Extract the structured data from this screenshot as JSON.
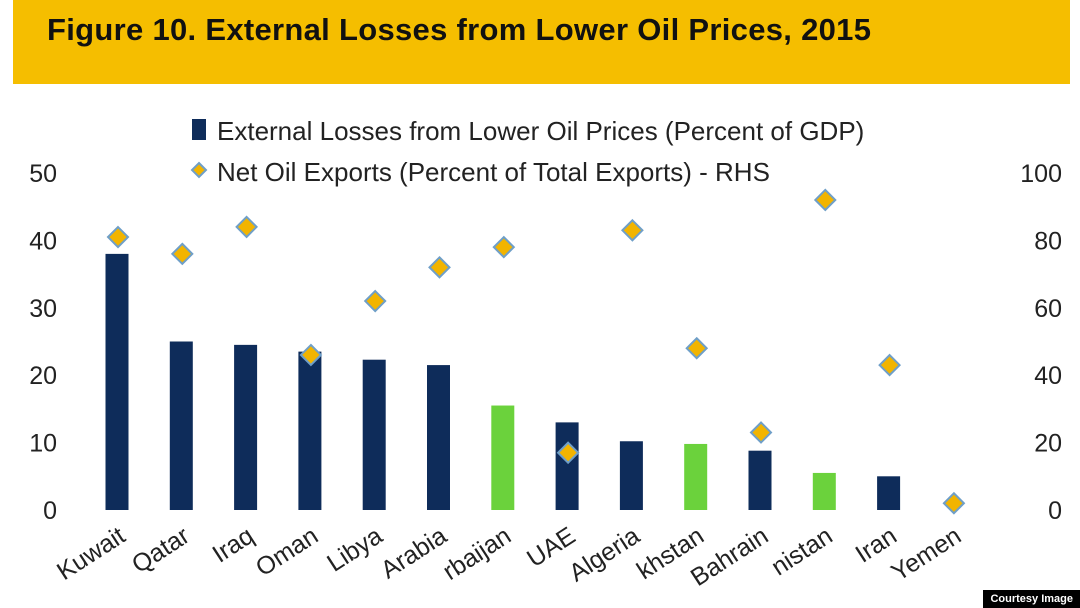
{
  "chart_data": {
    "type": "bar",
    "title": "Figure 10. External Losses from Lower Oil Prices, 2015",
    "categories": [
      "Kuwait",
      "Qatar",
      "Iraq",
      "Oman",
      "Libya",
      "Saudi Arabia",
      "Azerbaijan",
      "UAE",
      "Algeria",
      "Kazakhstan",
      "Bahrain",
      "Turkmenistan",
      "Iran",
      "Yemen"
    ],
    "tick_labels_visible": [
      "Kuwait",
      "Qatar",
      "Iraq",
      "Oman",
      "Libya",
      "Arabia",
      "rbaijan",
      "UAE",
      "Algeria",
      "khstan",
      "Bahrain",
      "nistan",
      "Iran",
      "Yemen"
    ],
    "series": [
      {
        "name": "External Losses from Lower Oil Prices (Percent of GDP)",
        "type": "bar",
        "axis": "left",
        "values": [
          38,
          25,
          24.5,
          23.5,
          22.3,
          21.5,
          15.5,
          13,
          10.2,
          9.8,
          8.8,
          5.5,
          5,
          0
        ],
        "colors": [
          "#0e2c5a",
          "#0e2c5a",
          "#0e2c5a",
          "#0e2c5a",
          "#0e2c5a",
          "#0e2c5a",
          "#6bd23c",
          "#0e2c5a",
          "#0e2c5a",
          "#6bd23c",
          "#0e2c5a",
          "#6bd23c",
          "#0e2c5a",
          "#0e2c5a"
        ]
      },
      {
        "name": "Net Oil Exports (Percent of Total Exports) - RHS",
        "type": "scatter",
        "axis": "right",
        "marker": "diamond",
        "values": [
          81,
          76,
          84,
          46,
          62,
          72,
          78,
          17,
          83,
          48,
          23,
          92,
          43,
          2
        ]
      }
    ],
    "ylim": [
      0,
      50
    ],
    "yticks": [
      "0",
      "10",
      "20",
      "30",
      "40",
      "50"
    ],
    "ylim_right": [
      0,
      100
    ],
    "yticks_right": [
      "0",
      "20",
      "40",
      "60",
      "80",
      "100"
    ],
    "legend_position": "top",
    "grid": false
  },
  "colors": {
    "bar_dark": "#0e2c5a",
    "bar_green": "#6bd23c",
    "marker_fill": "#f2b400",
    "marker_stroke": "#6f9fc8",
    "title_band": "#f5be00"
  },
  "credit": "Courtesy Image"
}
